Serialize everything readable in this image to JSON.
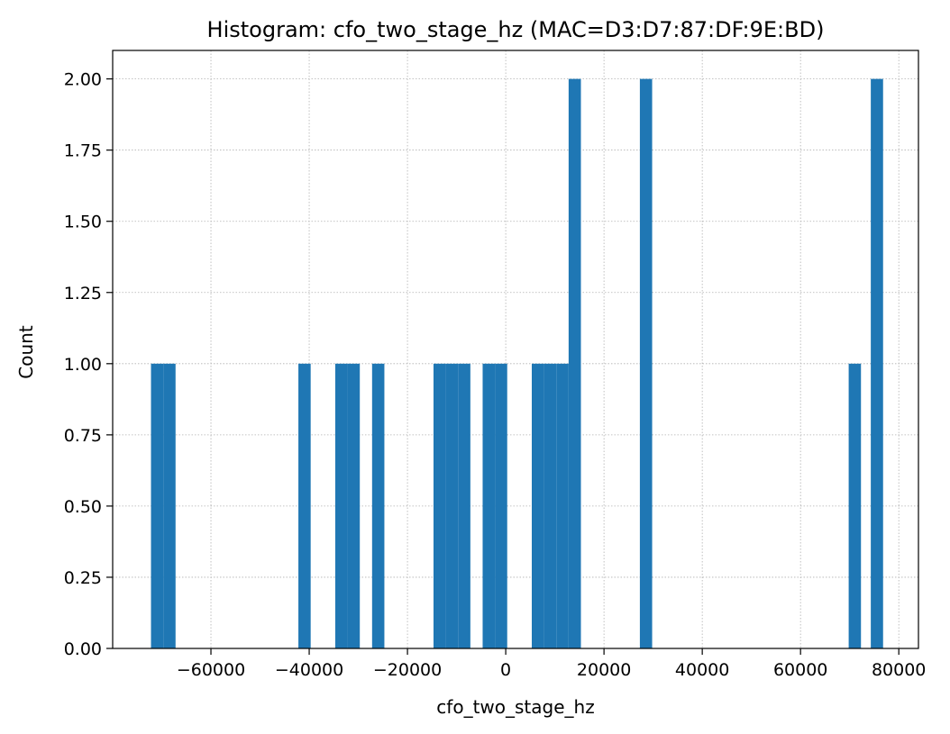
{
  "chart_data": {
    "type": "bar",
    "subtype": "histogram",
    "title": "Histogram: cfo_two_stage_hz (MAC=D3:D7:87:DF:9E:BD)",
    "xlabel": "cfo_two_stage_hz",
    "ylabel": "Count",
    "xlim": [
      -80000,
      84000
    ],
    "ylim": [
      0,
      2.1
    ],
    "xticks": [
      -60000,
      -40000,
      -20000,
      0,
      20000,
      40000,
      60000,
      80000
    ],
    "xtick_labels": [
      "−60000",
      "−40000",
      "−20000",
      "0",
      "20000",
      "40000",
      "60000",
      "80000"
    ],
    "yticks": [
      0,
      0.25,
      0.5,
      0.75,
      1.0,
      1.25,
      1.5,
      1.75,
      2.0
    ],
    "ytick_labels": [
      "0.00",
      "0.25",
      "0.50",
      "0.75",
      "1.00",
      "1.25",
      "1.50",
      "1.75",
      "2.00"
    ],
    "grid": true,
    "bar_color": "#1f77b4",
    "bins": [
      {
        "x0": -72200,
        "x1": -69700,
        "count": 1
      },
      {
        "x0": -69700,
        "x1": -67200,
        "count": 1
      },
      {
        "x0": -42200,
        "x1": -39700,
        "count": 1
      },
      {
        "x0": -34700,
        "x1": -32200,
        "count": 1
      },
      {
        "x0": -32200,
        "x1": -29700,
        "count": 1
      },
      {
        "x0": -27200,
        "x1": -24700,
        "count": 1
      },
      {
        "x0": -14700,
        "x1": -12200,
        "count": 1
      },
      {
        "x0": -12200,
        "x1": -9700,
        "count": 1
      },
      {
        "x0": -9700,
        "x1": -7200,
        "count": 1
      },
      {
        "x0": -4700,
        "x1": -2200,
        "count": 1
      },
      {
        "x0": -2200,
        "x1": 300,
        "count": 1
      },
      {
        "x0": 5300,
        "x1": 7800,
        "count": 1
      },
      {
        "x0": 7800,
        "x1": 10300,
        "count": 1
      },
      {
        "x0": 10300,
        "x1": 12800,
        "count": 1
      },
      {
        "x0": 12800,
        "x1": 15300,
        "count": 2
      },
      {
        "x0": 27300,
        "x1": 29800,
        "count": 2
      },
      {
        "x0": 69800,
        "x1": 72300,
        "count": 1
      },
      {
        "x0": 74300,
        "x1": 76800,
        "count": 2
      }
    ]
  }
}
